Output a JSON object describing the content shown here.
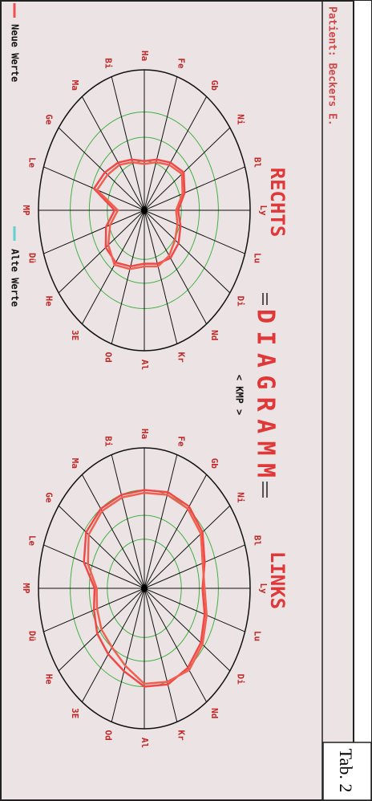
{
  "header": {
    "patient": "Patient: Beckers E.",
    "caption": "Tab. 2"
  },
  "title": "DIAGRAMM",
  "subtitle": "< KMP >",
  "axes": [
    "Ly",
    "Lu",
    "Di",
    "Nd",
    "Kr",
    "Al",
    "Od",
    "3E",
    "He",
    "Dü",
    "MP",
    "Le",
    "Ge",
    "Ma",
    "Bi",
    "Ha",
    "Fe",
    "Gb",
    "Ni",
    "Bl"
  ],
  "diagrams": [
    {
      "title": "RECHTS",
      "polygons": [
        [
          0.32,
          0.36,
          0.4,
          0.42,
          0.4,
          0.38,
          0.42,
          0.46,
          0.45,
          0.38,
          0.28,
          0.5,
          0.46,
          0.42,
          0.38,
          0.35,
          0.38,
          0.42,
          0.46,
          0.4
        ],
        [
          0.3,
          0.33,
          0.36,
          0.4,
          0.42,
          0.4,
          0.44,
          0.48,
          0.42,
          0.34,
          0.25,
          0.47,
          0.43,
          0.4,
          0.36,
          0.33,
          0.36,
          0.4,
          0.44,
          0.38
        ]
      ]
    },
    {
      "title": "LINKS",
      "polygons": [
        [
          0.55,
          0.6,
          0.66,
          0.7,
          0.72,
          0.7,
          0.62,
          0.58,
          0.55,
          0.5,
          0.47,
          0.6,
          0.68,
          0.7,
          0.7,
          0.7,
          0.72,
          0.72,
          0.68,
          0.6
        ],
        [
          0.57,
          0.62,
          0.68,
          0.72,
          0.7,
          0.68,
          0.58,
          0.52,
          0.5,
          0.47,
          0.45,
          0.56,
          0.65,
          0.68,
          0.68,
          0.68,
          0.7,
          0.7,
          0.66,
          0.58
        ]
      ]
    }
  ],
  "legend": [
    "Neue Werte",
    "Alte Werte"
  ]
}
